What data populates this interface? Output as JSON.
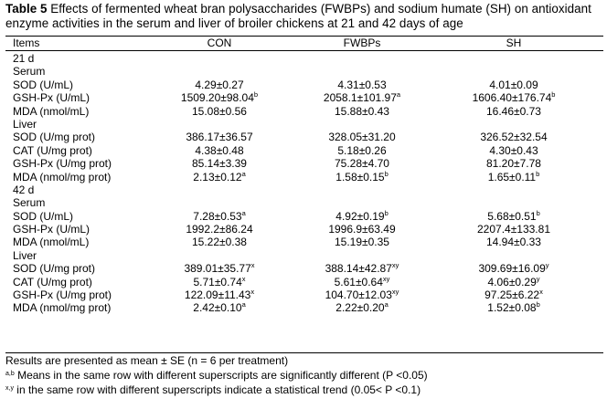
{
  "table": {
    "title_label": "Table 5",
    "title_text": " Effects of fermented wheat bran polysaccharides (FWBPs) and sodium humate (SH) on antioxidant enzyme activities in the serum and liver of broiler chickens at 21 and 42 days of age",
    "columns": [
      "Items",
      "CON",
      "FWBPs",
      "SH"
    ],
    "rows": [
      {
        "label": "21 d",
        "cells": []
      },
      {
        "label": "Serum",
        "cells": []
      },
      {
        "label": "SOD (U/mL)",
        "cells": [
          {
            "v": "4.29±0.27",
            "s": ""
          },
          {
            "v": "4.31±0.53",
            "s": ""
          },
          {
            "v": "4.01±0.09",
            "s": ""
          }
        ]
      },
      {
        "label": "GSH-Px (U/mL)",
        "cells": [
          {
            "v": "1509.20±98.04",
            "s": "b"
          },
          {
            "v": "2058.1±101.97",
            "s": "a"
          },
          {
            "v": "1606.40±176.74",
            "s": "b"
          }
        ]
      },
      {
        "label": "MDA (nmol/mL)",
        "cells": [
          {
            "v": "15.08±0.56",
            "s": ""
          },
          {
            "v": "15.88±0.43",
            "s": ""
          },
          {
            "v": "16.46±0.73",
            "s": ""
          }
        ]
      },
      {
        "label": "Liver",
        "cells": []
      },
      {
        "label": "SOD (U/mg prot)",
        "cells": [
          {
            "v": "386.17±36.57",
            "s": ""
          },
          {
            "v": "328.05±31.20",
            "s": ""
          },
          {
            "v": "326.52±32.54",
            "s": ""
          }
        ]
      },
      {
        "label": "CAT (U/mg prot)",
        "cells": [
          {
            "v": "4.38±0.48",
            "s": ""
          },
          {
            "v": "5.18±0.26",
            "s": ""
          },
          {
            "v": "4.30±0.43",
            "s": ""
          }
        ]
      },
      {
        "label": "GSH-Px (U/mg prot)",
        "cells": [
          {
            "v": "85.14±3.39",
            "s": ""
          },
          {
            "v": "75.28±4.70",
            "s": ""
          },
          {
            "v": "81.20±7.78",
            "s": ""
          }
        ]
      },
      {
        "label": "MDA (nmol/mg prot)",
        "cells": [
          {
            "v": "2.13±0.12",
            "s": "a"
          },
          {
            "v": "1.58±0.15",
            "s": "b"
          },
          {
            "v": "1.65±0.11",
            "s": "b"
          }
        ]
      },
      {
        "label": "42 d",
        "cells": []
      },
      {
        "label": "Serum",
        "cells": []
      },
      {
        "label": "SOD (U/mL)",
        "cells": [
          {
            "v": "7.28±0.53",
            "s": "a"
          },
          {
            "v": "4.92±0.19",
            "s": "b"
          },
          {
            "v": "5.68±0.51",
            "s": "b"
          }
        ]
      },
      {
        "label": "GSH-Px (U/mL)",
        "cells": [
          {
            "v": "1992.2±86.24",
            "s": ""
          },
          {
            "v": "1996.9±63.49",
            "s": ""
          },
          {
            "v": "2207.4±133.81",
            "s": ""
          }
        ]
      },
      {
        "label": "MDA (nmol/mL)",
        "cells": [
          {
            "v": "15.22±0.38",
            "s": ""
          },
          {
            "v": "15.19±0.35",
            "s": ""
          },
          {
            "v": "14.94±0.33",
            "s": ""
          }
        ]
      },
      {
        "label": "Liver",
        "cells": []
      },
      {
        "label": "SOD (U/mg prot)",
        "cells": [
          {
            "v": "389.01±35.77",
            "s": "x"
          },
          {
            "v": "388.14±42.87",
            "s": "xy"
          },
          {
            "v": "309.69±16.09",
            "s": "y"
          }
        ]
      },
      {
        "label": "CAT (U/mg prot)",
        "cells": [
          {
            "v": "5.71±0.74",
            "s": "x"
          },
          {
            "v": "5.61±0.64",
            "s": "xy"
          },
          {
            "v": "4.06±0.29",
            "s": "y"
          }
        ]
      },
      {
        "label": "GSH-Px (U/mg prot)",
        "cells": [
          {
            "v": "122.09±11.43",
            "s": "x"
          },
          {
            "v": "104.70±12.03",
            "s": "xy"
          },
          {
            "v": "97.25±6.22",
            "s": "x"
          }
        ]
      },
      {
        "label": "MDA (nmol/mg prot)",
        "cells": [
          {
            "v": "2.42±0.10",
            "s": "a"
          },
          {
            "v": "2.22±0.20",
            "s": "a"
          },
          {
            "v": "1.52±0.08",
            "s": "b"
          }
        ]
      }
    ],
    "notes": [
      {
        "sup": "",
        "text": "Results are presented as mean ± SE (n = 6 per treatment)"
      },
      {
        "sup": "a,b",
        "text": " Means in the same row with different superscripts are significantly different (P <0.05)"
      },
      {
        "sup": "x,y",
        "text": " in the same row with different superscripts indicate a statistical trend (0.05< P <0.1)"
      }
    ]
  }
}
